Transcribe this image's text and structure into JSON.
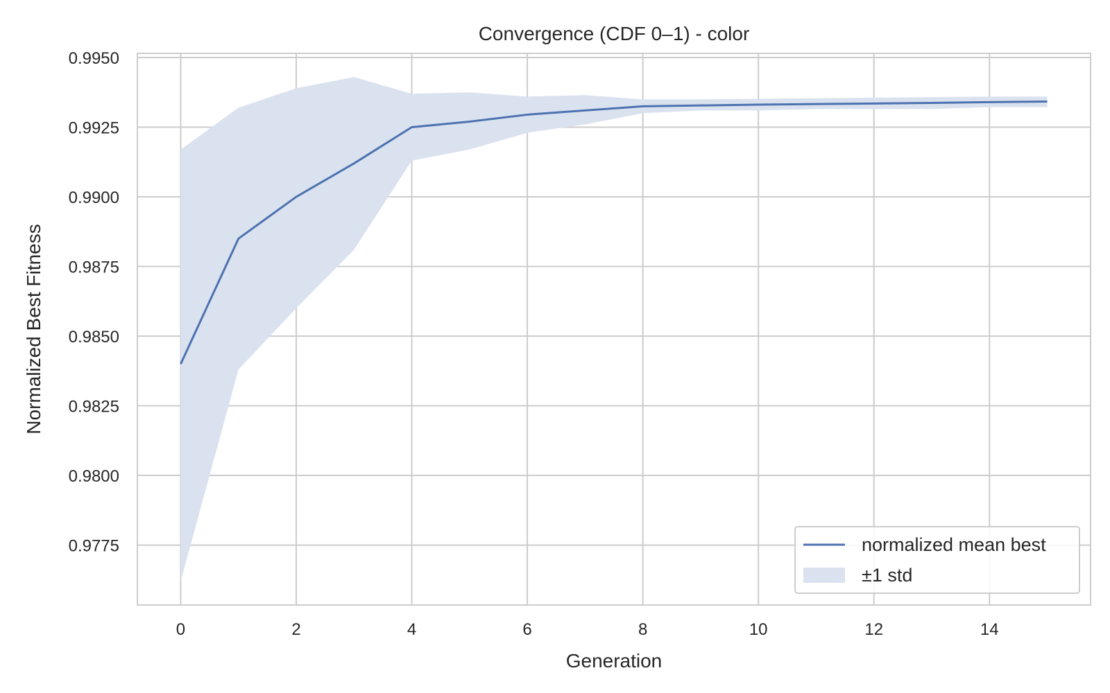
{
  "chart_data": {
    "type": "line",
    "title": "Convergence (CDF 0–1) - color",
    "xlabel": "Generation",
    "ylabel": "Normalized Best Fitness",
    "xlim": [
      -0.75,
      15.75
    ],
    "ylim": [
      0.97535,
      0.99515
    ],
    "x_ticks": [
      0,
      2,
      4,
      6,
      8,
      10,
      12,
      14
    ],
    "x_tick_labels": [
      "0",
      "2",
      "4",
      "6",
      "8",
      "10",
      "12",
      "14"
    ],
    "y_ticks": [
      0.9775,
      0.98,
      0.9825,
      0.985,
      0.9875,
      0.99,
      0.9925,
      0.995
    ],
    "y_tick_labels": [
      "0.9775",
      "0.9800",
      "0.9825",
      "0.9850",
      "0.9875",
      "0.9900",
      "0.9925",
      "0.9950"
    ],
    "grid": true,
    "legend_position": "lower-right",
    "x": [
      0,
      1,
      2,
      3,
      4,
      5,
      6,
      7,
      8,
      9,
      10,
      11,
      12,
      13,
      14,
      15
    ],
    "series": [
      {
        "name": "normalized mean best",
        "kind": "line",
        "color": "#4c72b0",
        "values": [
          0.984,
          0.9885,
          0.99,
          0.9912,
          0.9925,
          0.9927,
          0.99295,
          0.9931,
          0.99325,
          0.99328,
          0.99331,
          0.99333,
          0.99335,
          0.99337,
          0.9934,
          0.99342
        ]
      },
      {
        "name": "±1 std",
        "kind": "band",
        "color": "#dbe2ef",
        "lower": [
          0.9762,
          0.9838,
          0.986,
          0.9881,
          0.9913,
          0.9917,
          0.9923,
          0.9926,
          0.993,
          0.9931,
          0.9931,
          0.99315,
          0.99315,
          0.99315,
          0.99322,
          0.99322
        ],
        "upper": [
          0.9917,
          0.9932,
          0.9939,
          0.9943,
          0.9937,
          0.99375,
          0.9936,
          0.99365,
          0.9935,
          0.9935,
          0.99352,
          0.99354,
          0.99356,
          0.99358,
          0.9936,
          0.9936
        ]
      }
    ]
  }
}
